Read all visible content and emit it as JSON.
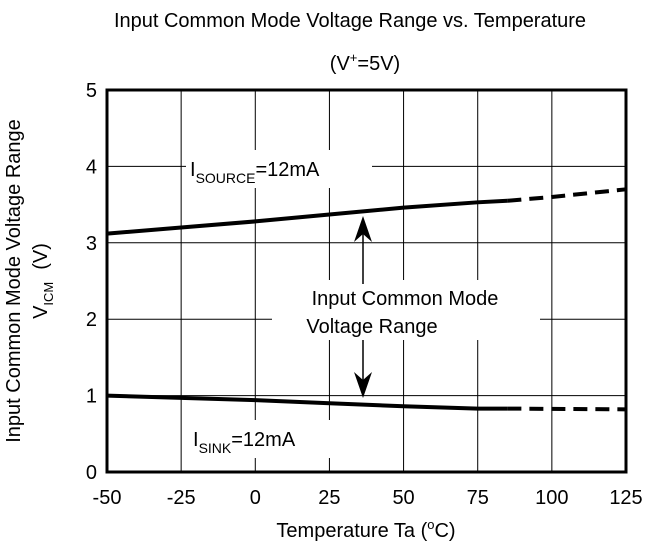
{
  "chart_data": {
    "type": "line",
    "title": "Input Common Mode Voltage Range vs. Temperature",
    "subtitle": [
      "(V",
      "+",
      "=5V)"
    ],
    "y_label": [
      "Input Common Mode Voltage Range",
      "V",
      "ICM",
      "(V)"
    ],
    "x_label": [
      "Temperature  Ta  (",
      "o",
      "C)"
    ],
    "xlim": [
      -50,
      125
    ],
    "xticks": [
      -50,
      -25,
      0,
      25,
      50,
      75,
      100,
      125
    ],
    "ylim": [
      0,
      5
    ],
    "yticks": [
      0,
      1,
      2,
      3,
      4,
      5
    ],
    "grid": true,
    "color": "#000000",
    "series": [
      {
        "style": "solid",
        "x": [
          -50,
          -25,
          0,
          25,
          50,
          75,
          85
        ],
        "values": [
          3.12,
          3.2,
          3.28,
          3.37,
          3.46,
          3.53,
          3.55
        ]
      },
      {
        "style": "dashed",
        "x": [
          85,
          100,
          125
        ],
        "values": [
          3.55,
          3.6,
          3.7
        ]
      },
      {
        "style": "solid",
        "x": [
          -50,
          -25,
          0,
          25,
          50,
          75,
          85
        ],
        "values": [
          1.0,
          0.97,
          0.94,
          0.9,
          0.86,
          0.83,
          0.83
        ]
      },
      {
        "style": "dashed",
        "x": [
          85,
          125
        ],
        "values": [
          0.83,
          0.82
        ]
      }
    ],
    "annotations": {
      "source": [
        "I",
        "SOURCE",
        "=12mA"
      ],
      "sink": [
        "I",
        "SINK",
        "=12mA"
      ],
      "range": [
        "Input Common Mode",
        "Voltage Range"
      ]
    }
  }
}
